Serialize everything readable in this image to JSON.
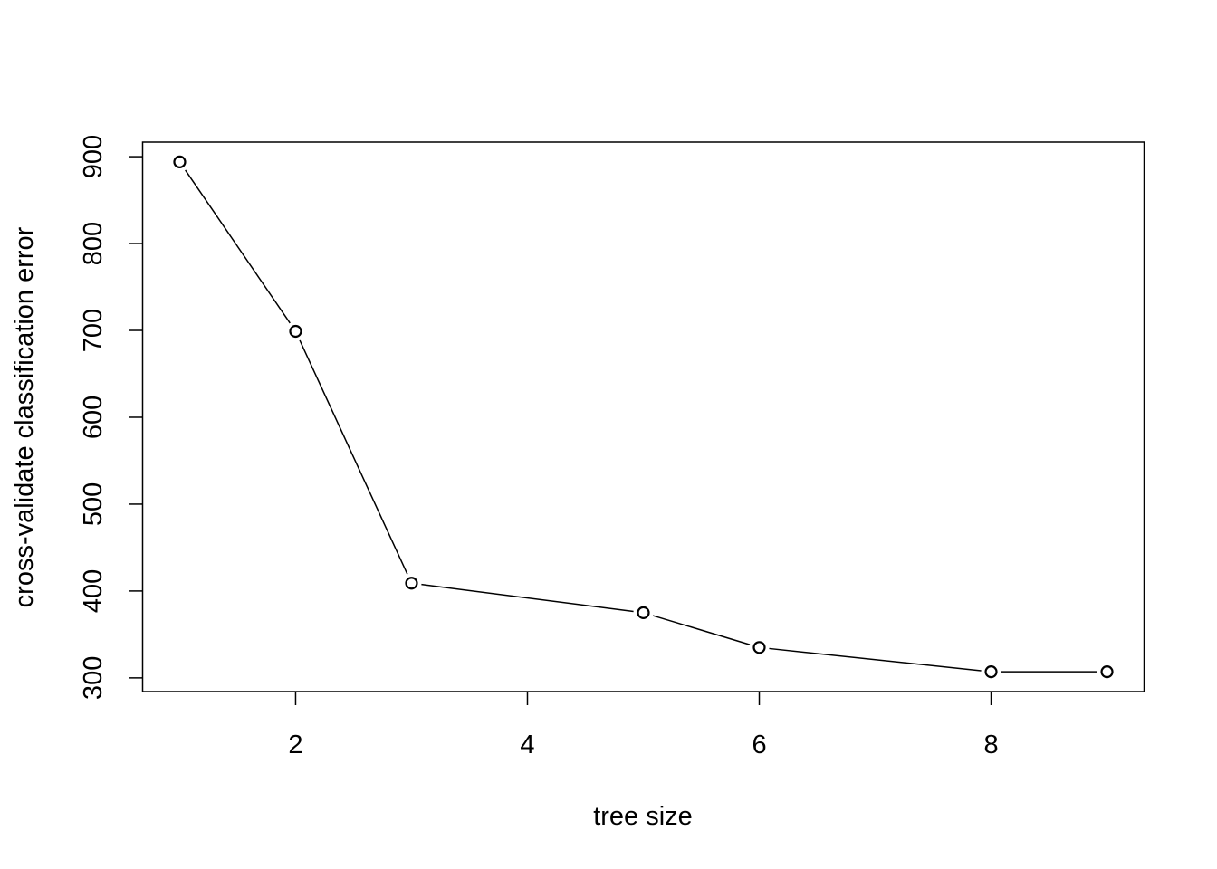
{
  "chart_data": {
    "type": "line",
    "title": "",
    "xlabel": "tree size",
    "ylabel": "cross-validate classification error",
    "x": [
      1,
      2,
      3,
      5,
      6,
      8,
      9
    ],
    "y": [
      894,
      699,
      409,
      375,
      335,
      307,
      307
    ],
    "xlim": [
      0.68,
      9.32
    ],
    "ylim": [
      284.24,
      916.76
    ],
    "xticks": [
      2,
      4,
      6,
      8
    ],
    "yticks": [
      300,
      400,
      500,
      600,
      700,
      800,
      900
    ],
    "xtick_labels": [
      "2",
      "4",
      "6",
      "8"
    ],
    "ytick_labels": [
      "300",
      "400",
      "500",
      "600",
      "700",
      "800",
      "900"
    ],
    "marker": "open-circle",
    "grid": false,
    "legend": "none",
    "line_color": "#000000"
  }
}
